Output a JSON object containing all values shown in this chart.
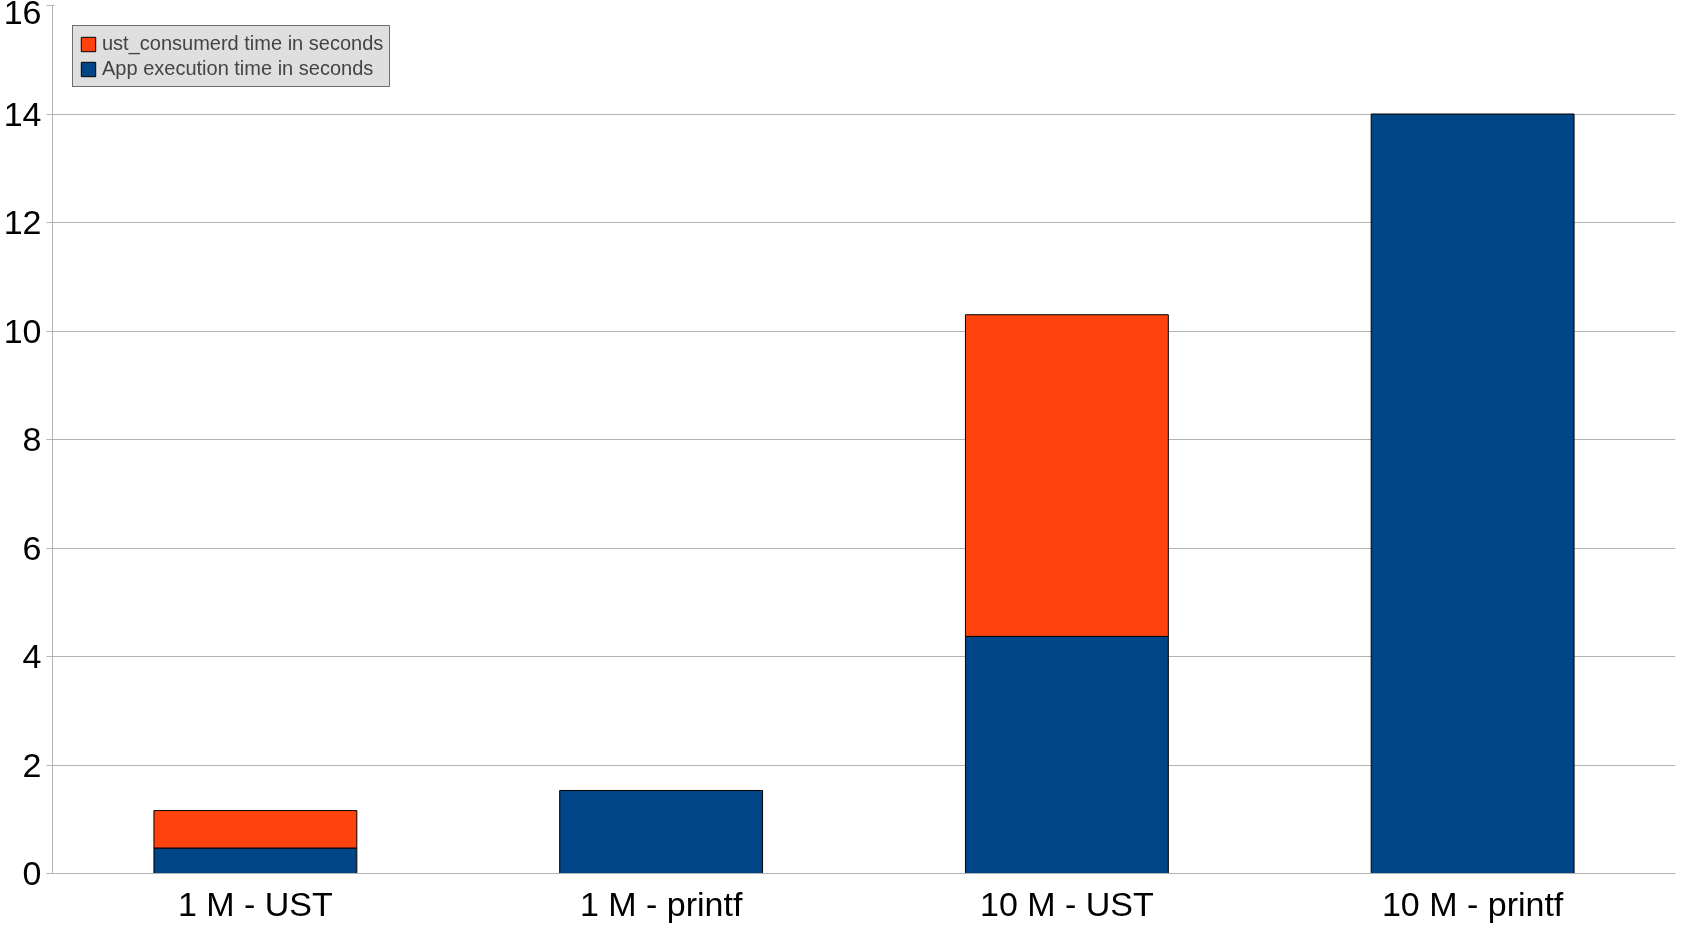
{
  "chart_data": {
    "type": "bar",
    "stacked": true,
    "categories": [
      "1 M - UST",
      "1 M - printf",
      "10 M - UST",
      "10 M - printf"
    ],
    "series": [
      {
        "name": "App execution time in seconds",
        "color": "#004586",
        "values": [
          0.47,
          1.53,
          4.37,
          14.0
        ]
      },
      {
        "name": "ust_consumerd time in seconds",
        "color": "#ff420e",
        "values": [
          0.69,
          null,
          5.93,
          null
        ]
      }
    ],
    "ylim": [
      0,
      16
    ],
    "yticks": [
      0,
      2,
      4,
      6,
      8,
      10,
      12,
      14,
      16
    ],
    "grid": "y",
    "legend": "top left"
  }
}
